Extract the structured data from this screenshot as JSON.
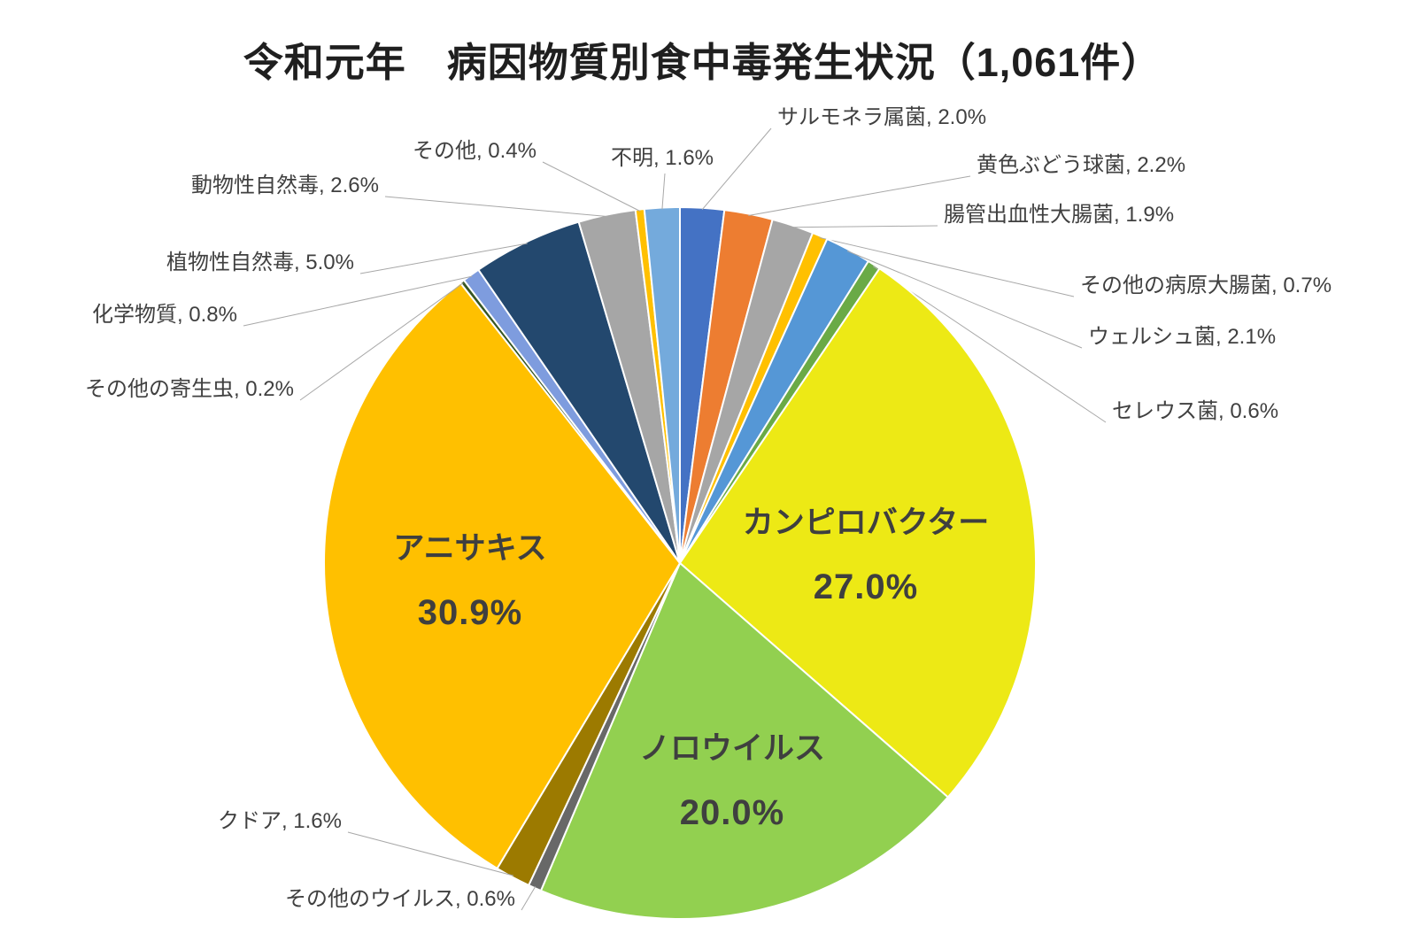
{
  "title": "令和元年　病因物質別食中毒発生状況（1,061件）",
  "chart_data": {
    "type": "pie",
    "title": "令和元年　病因物質別食中毒発生状況（1,061件）",
    "unit": "%",
    "legend": "none",
    "label_style": "outside leader-line labels for small slices, bold inside labels for large slices",
    "slices": [
      {
        "name": "サルモネラ属菌",
        "value": 2.0,
        "label": "サルモネラ属菌, 2.0%",
        "color": "#4472C4"
      },
      {
        "name": "黄色ぶどう球菌",
        "value": 2.2,
        "label": "黄色ぶどう球菌, 2.2%",
        "color": "#ED7D31"
      },
      {
        "name": "腸管出血性大腸菌",
        "value": 1.9,
        "label": "腸管出血性大腸菌, 1.9%",
        "color": "#A6A6A6"
      },
      {
        "name": "その他の病原大腸菌",
        "value": 0.7,
        "label": "その他の病原大腸菌, 0.7%",
        "color": "#FFC000"
      },
      {
        "name": "ウェルシュ菌",
        "value": 2.1,
        "label": "ウェルシュ菌, 2.1%",
        "color": "#5597D6"
      },
      {
        "name": "セレウス菌",
        "value": 0.6,
        "label": "セレウス菌, 0.6%",
        "color": "#6AAA46"
      },
      {
        "name": "カンピロバクター",
        "value": 27.0,
        "pct_label": "27.0%",
        "color": "#EDE915"
      },
      {
        "name": "ノロウイルス",
        "value": 20.0,
        "pct_label": "20.0%",
        "color": "#92D050"
      },
      {
        "name": "その他のウイルス",
        "value": 0.6,
        "label": "その他のウイルス, 0.6%",
        "color": "#686868"
      },
      {
        "name": "クドア",
        "value": 1.6,
        "label": "クドア, 1.6%",
        "color": "#9C7A00"
      },
      {
        "name": "アニサキス",
        "value": 30.9,
        "pct_label": "30.9%",
        "color": "#FFC000"
      },
      {
        "name": "その他の寄生虫",
        "value": 0.2,
        "label": "その他の寄生虫, 0.2%",
        "color": "#375623"
      },
      {
        "name": "化学物質",
        "value": 0.8,
        "label": "化学物質, 0.8%",
        "color": "#7E9CDE"
      },
      {
        "name": "植物性自然毒",
        "value": 5.0,
        "label": "植物性自然毒, 5.0%",
        "color": "#23486E"
      },
      {
        "name": "動物性自然毒",
        "value": 2.6,
        "label": "動物性自然毒, 2.6%",
        "color": "#A6A6A6"
      },
      {
        "name": "その他",
        "value": 0.4,
        "label": "その他, 0.4%",
        "color": "#FFC000"
      },
      {
        "name": "不明",
        "value": 1.6,
        "label": "不明, 1.6%",
        "color": "#74AADC"
      }
    ],
    "leader_line_color": "#A8A8A8",
    "slice_border_color": "#FFFFFF",
    "label_text_color": "#404040"
  }
}
